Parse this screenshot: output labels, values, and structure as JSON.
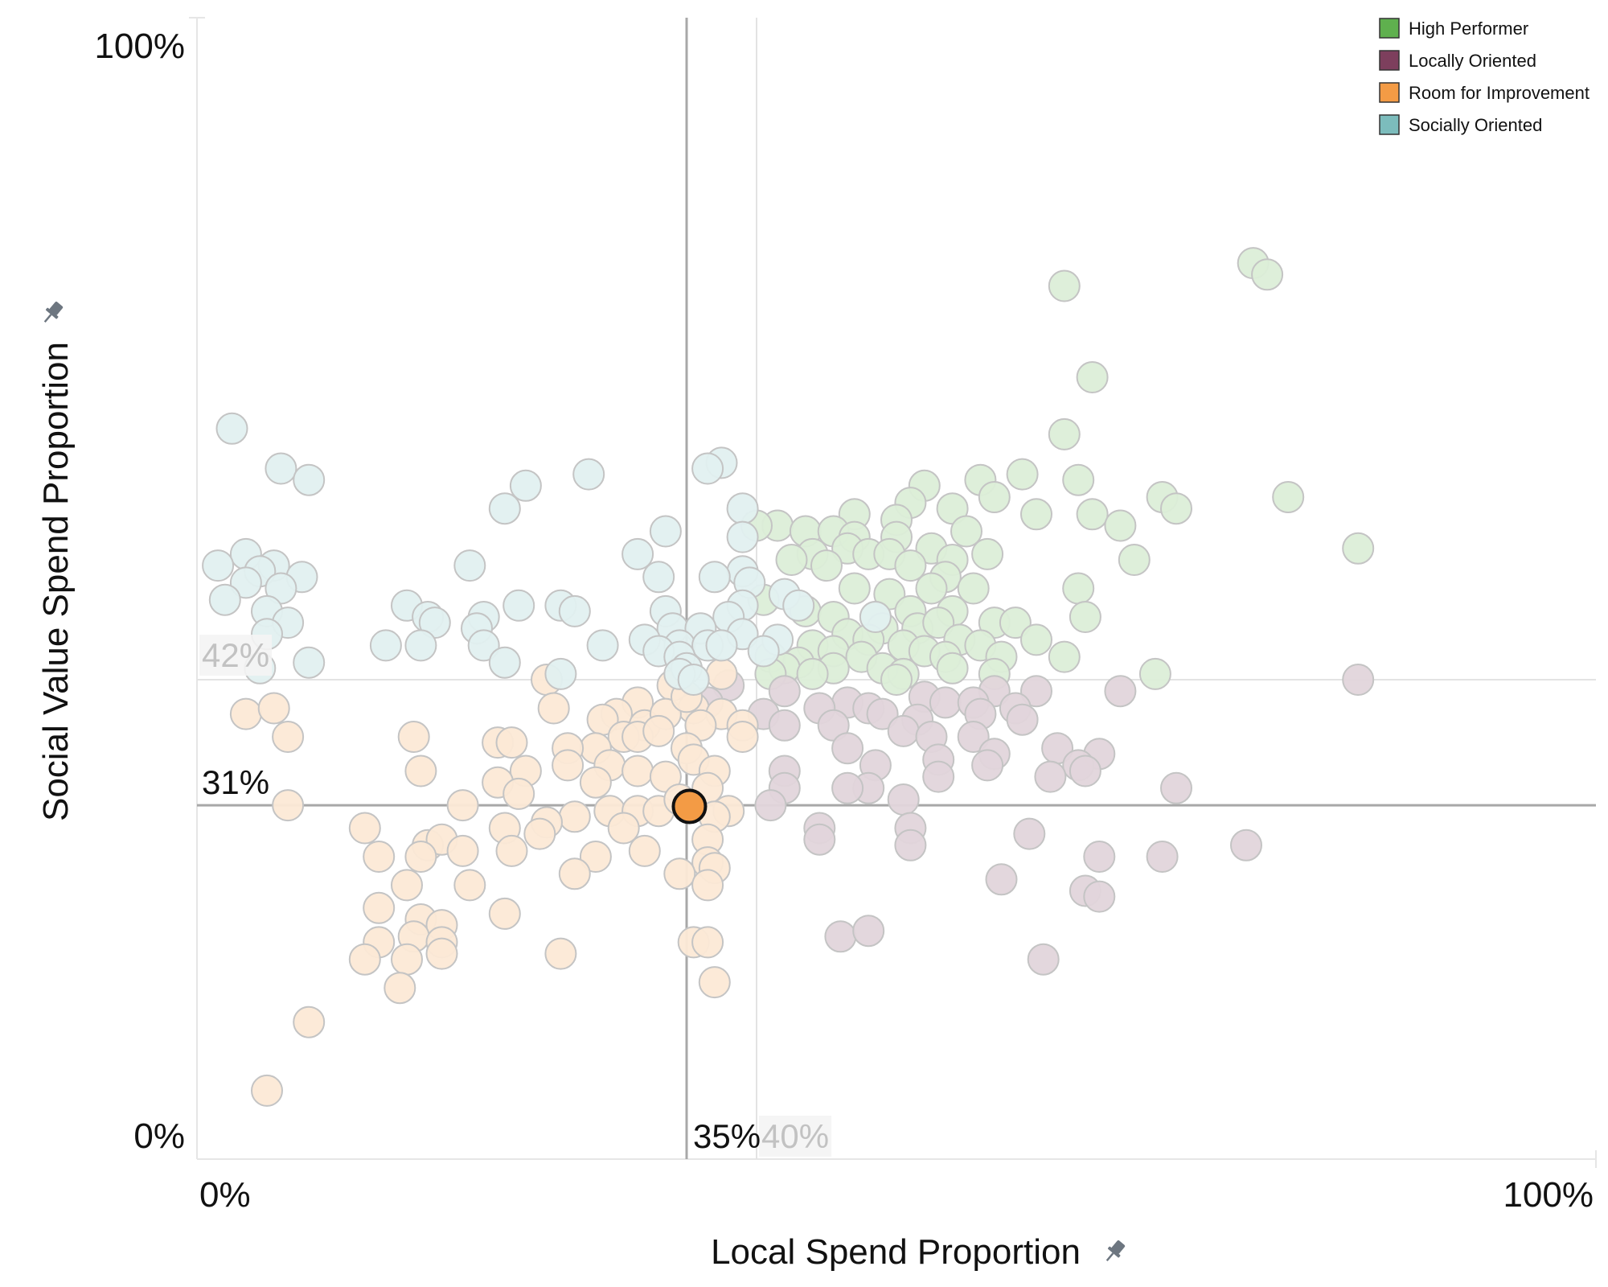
{
  "chart_data": {
    "type": "scatter",
    "xlabel": "Local Spend Proportion",
    "ylabel": "Social Value Spend Proportion",
    "x_ticks": [
      "0%",
      "100%"
    ],
    "y_ticks": [
      "0%",
      "100%"
    ],
    "xlim": [
      0,
      100
    ],
    "ylim": [
      0,
      100
    ],
    "grid": false,
    "legend_position": "top-right",
    "reference_lines": {
      "x_primary": {
        "value": 35,
        "label": "35%"
      },
      "x_secondary": {
        "value": 40,
        "label": "40%"
      },
      "y_primary": {
        "value": 31,
        "label": "31%"
      },
      "y_secondary": {
        "value": 42,
        "label": "42%"
      }
    },
    "highlighted_point": {
      "x": 35.2,
      "y": 30.9,
      "series": "Room for Improvement"
    },
    "series": [
      {
        "name": "High Performer",
        "color": "#5fb04e",
        "points": [
          [
            62,
            76.5
          ],
          [
            75.5,
            78.5
          ],
          [
            76.5,
            77.5
          ],
          [
            64,
            68.5
          ],
          [
            62,
            63.5
          ],
          [
            59,
            60
          ],
          [
            63,
            59.5
          ],
          [
            78,
            58
          ],
          [
            69,
            58
          ],
          [
            70,
            57
          ],
          [
            56,
            59.5
          ],
          [
            64,
            56.5
          ],
          [
            66,
            55.5
          ],
          [
            60,
            56.5
          ],
          [
            67,
            52.5
          ],
          [
            83,
            53.5
          ],
          [
            52,
            59
          ],
          [
            57,
            58
          ],
          [
            51,
            57.5
          ],
          [
            54,
            57
          ],
          [
            47,
            56.5
          ],
          [
            50,
            56
          ],
          [
            55,
            55
          ],
          [
            41.5,
            55.5
          ],
          [
            40,
            55.5
          ],
          [
            43.5,
            55
          ],
          [
            45.5,
            55
          ],
          [
            47,
            54.5
          ],
          [
            50,
            54.5
          ],
          [
            52.5,
            53.5
          ],
          [
            44,
            53
          ],
          [
            46.5,
            53.5
          ],
          [
            48,
            53
          ],
          [
            54,
            52.5
          ],
          [
            56.5,
            53
          ],
          [
            42.5,
            52.5
          ],
          [
            45,
            52
          ],
          [
            49.5,
            53
          ],
          [
            51,
            52
          ],
          [
            53.5,
            51
          ],
          [
            40.5,
            49
          ],
          [
            47,
            50
          ],
          [
            49.5,
            49.5
          ],
          [
            52.5,
            50
          ],
          [
            55.5,
            50
          ],
          [
            63,
            50
          ],
          [
            43.5,
            48
          ],
          [
            48.5,
            47.5
          ],
          [
            51,
            48
          ],
          [
            54,
            48
          ],
          [
            57,
            47
          ],
          [
            63.5,
            47.5
          ],
          [
            45.5,
            47.5
          ],
          [
            46.5,
            46
          ],
          [
            49,
            46.5
          ],
          [
            51.5,
            46.5
          ],
          [
            53,
            47
          ],
          [
            58.5,
            47
          ],
          [
            48,
            45.5
          ],
          [
            50.5,
            45
          ],
          [
            52,
            44.5
          ],
          [
            54.5,
            45.5
          ],
          [
            56,
            45
          ],
          [
            60,
            45.5
          ],
          [
            44,
            45
          ],
          [
            45.5,
            44.5
          ],
          [
            47.5,
            44
          ],
          [
            53.5,
            44
          ],
          [
            57.5,
            44
          ],
          [
            62,
            44
          ],
          [
            41,
            44
          ],
          [
            43,
            43.5
          ],
          [
            45.5,
            43
          ],
          [
            49,
            43
          ],
          [
            50.5,
            42.5
          ],
          [
            54,
            43
          ],
          [
            57,
            42.5
          ],
          [
            68.5,
            42.5
          ],
          [
            42,
            43
          ],
          [
            44,
            42.5
          ],
          [
            50,
            42
          ],
          [
            41,
            42.5
          ]
        ]
      },
      {
        "name": "Locally Oriented",
        "color": "#7d3f5d",
        "points": [
          [
            83,
            42
          ],
          [
            38,
            41.5
          ],
          [
            42,
            41
          ],
          [
            52,
            40.5
          ],
          [
            57,
            41
          ],
          [
            60,
            41
          ],
          [
            46.5,
            40
          ],
          [
            48,
            39.5
          ],
          [
            53.5,
            40
          ],
          [
            55.5,
            40
          ],
          [
            58.5,
            39.5
          ],
          [
            36.5,
            40
          ],
          [
            40.5,
            39
          ],
          [
            44.5,
            39.5
          ],
          [
            49,
            39
          ],
          [
            51.5,
            38.5
          ],
          [
            56,
            39
          ],
          [
            59,
            38.5
          ],
          [
            66,
            41
          ],
          [
            42,
            38
          ],
          [
            45.5,
            38
          ],
          [
            50.5,
            37.5
          ],
          [
            52.5,
            37
          ],
          [
            55.5,
            37
          ],
          [
            46.5,
            36
          ],
          [
            53,
            35
          ],
          [
            61.5,
            36
          ],
          [
            64.5,
            35.5
          ],
          [
            63,
            34.5
          ],
          [
            57,
            35.5
          ],
          [
            42,
            34
          ],
          [
            48.5,
            34.5
          ],
          [
            53,
            33.5
          ],
          [
            56.5,
            34.5
          ],
          [
            61,
            33.5
          ],
          [
            63.5,
            34
          ],
          [
            42,
            32.5
          ],
          [
            48,
            32.5
          ],
          [
            50.5,
            31.5
          ],
          [
            41,
            31
          ],
          [
            46.5,
            32.5
          ],
          [
            70,
            32.5
          ],
          [
            44.5,
            29
          ],
          [
            51,
            29
          ],
          [
            59.5,
            28.5
          ],
          [
            44.5,
            28
          ],
          [
            51,
            27.5
          ],
          [
            64.5,
            26.5
          ],
          [
            69,
            26.5
          ],
          [
            75,
            27.5
          ],
          [
            57.5,
            24.5
          ],
          [
            63.5,
            23.5
          ],
          [
            64.5,
            23
          ],
          [
            46,
            19.5
          ],
          [
            48,
            20
          ],
          [
            60.5,
            17.5
          ]
        ]
      },
      {
        "name": "Room for Improvement",
        "color": "#f39b45",
        "points": [
          [
            25,
            42
          ],
          [
            37.5,
            42.5
          ],
          [
            34,
            41.5
          ],
          [
            25.5,
            39.5
          ],
          [
            31.5,
            40
          ],
          [
            30,
            39
          ],
          [
            35.5,
            39.5
          ],
          [
            37.5,
            39
          ],
          [
            3.5,
            39
          ],
          [
            5.5,
            39.5
          ],
          [
            29,
            38.5
          ],
          [
            32,
            38
          ],
          [
            33.5,
            39
          ],
          [
            35,
            40.5
          ],
          [
            36,
            38
          ],
          [
            30.5,
            37
          ],
          [
            39,
            38
          ],
          [
            28.5,
            36
          ],
          [
            31.5,
            37
          ],
          [
            33,
            37.5
          ],
          [
            39,
            37
          ],
          [
            6.5,
            37
          ],
          [
            15.5,
            37
          ],
          [
            21.5,
            36.5
          ],
          [
            22.5,
            36.5
          ],
          [
            26.5,
            36
          ],
          [
            35,
            36
          ],
          [
            26.5,
            34.5
          ],
          [
            29.5,
            34.5
          ],
          [
            31.5,
            34
          ],
          [
            16,
            34
          ],
          [
            23.5,
            34
          ],
          [
            21.5,
            33
          ],
          [
            28.5,
            33
          ],
          [
            35.5,
            35
          ],
          [
            33.5,
            33.5
          ],
          [
            37,
            34
          ],
          [
            23,
            32
          ],
          [
            36.5,
            32.5
          ],
          [
            6.5,
            31
          ],
          [
            19,
            31
          ],
          [
            29.5,
            30.5
          ],
          [
            31.5,
            30.5
          ],
          [
            33,
            30.5
          ],
          [
            38,
            30.5
          ],
          [
            27,
            30
          ],
          [
            34.5,
            31.5
          ],
          [
            12,
            29
          ],
          [
            25,
            29.5
          ],
          [
            22,
            29
          ],
          [
            30.5,
            29
          ],
          [
            37,
            30
          ],
          [
            36.5,
            28
          ],
          [
            24.5,
            28.5
          ],
          [
            16.5,
            27.5
          ],
          [
            17.5,
            28
          ],
          [
            19,
            27
          ],
          [
            22.5,
            27
          ],
          [
            13,
            26.5
          ],
          [
            16,
            26.5
          ],
          [
            28.5,
            26.5
          ],
          [
            32,
            27
          ],
          [
            36.5,
            26
          ],
          [
            34.5,
            25
          ],
          [
            37,
            25.5
          ],
          [
            15,
            24
          ],
          [
            19.5,
            24
          ],
          [
            27,
            25
          ],
          [
            36.5,
            24
          ],
          [
            13,
            22
          ],
          [
            16,
            21
          ],
          [
            17.5,
            20.5
          ],
          [
            22,
            21.5
          ],
          [
            13,
            19
          ],
          [
            15.5,
            19.5
          ],
          [
            17.5,
            19
          ],
          [
            12,
            17.5
          ],
          [
            15,
            17.5
          ],
          [
            17.5,
            18
          ],
          [
            26,
            18
          ],
          [
            35.5,
            19
          ],
          [
            36.5,
            19
          ],
          [
            14.5,
            15
          ],
          [
            8,
            12
          ],
          [
            5,
            6
          ],
          [
            37,
            15.5
          ]
        ]
      },
      {
        "name": "Socially Oriented",
        "color": "#7cbcbc",
        "points": [
          [
            2.5,
            64
          ],
          [
            6,
            60.5
          ],
          [
            8,
            59.5
          ],
          [
            28,
            60
          ],
          [
            23.5,
            59
          ],
          [
            37.5,
            61
          ],
          [
            36.5,
            60.5
          ],
          [
            39,
            57
          ],
          [
            22,
            57
          ],
          [
            39,
            54.5
          ],
          [
            33.5,
            55
          ],
          [
            3.5,
            53
          ],
          [
            5.5,
            52
          ],
          [
            1.5,
            52
          ],
          [
            4.5,
            51.5
          ],
          [
            7.5,
            51
          ],
          [
            6,
            50
          ],
          [
            3.5,
            50.5
          ],
          [
            19.5,
            52
          ],
          [
            39,
            51.5
          ],
          [
            31.5,
            53
          ],
          [
            42,
            49.5
          ],
          [
            2,
            49
          ],
          [
            5,
            48
          ],
          [
            15,
            48.5
          ],
          [
            23,
            48.5
          ],
          [
            26,
            48.5
          ],
          [
            33,
            51
          ],
          [
            37,
            51
          ],
          [
            39.5,
            50.5
          ],
          [
            39,
            48.5
          ],
          [
            27,
            48
          ],
          [
            33.5,
            48
          ],
          [
            38,
            47.5
          ],
          [
            48.5,
            47.5
          ],
          [
            43,
            48.5
          ],
          [
            6.5,
            47
          ],
          [
            5,
            46
          ],
          [
            16.5,
            47.5
          ],
          [
            17,
            47
          ],
          [
            20.5,
            47.5
          ],
          [
            20,
            46.5
          ],
          [
            34,
            46.5
          ],
          [
            36,
            46.5
          ],
          [
            34.5,
            45
          ],
          [
            39,
            46
          ],
          [
            32,
            45.5
          ],
          [
            36.5,
            45
          ],
          [
            41.5,
            45.5
          ],
          [
            40.5,
            44.5
          ],
          [
            13.5,
            45
          ],
          [
            16,
            45
          ],
          [
            20.5,
            45
          ],
          [
            29,
            45
          ],
          [
            33,
            44.5
          ],
          [
            34.5,
            44
          ],
          [
            35,
            43
          ],
          [
            37.5,
            45
          ],
          [
            8,
            43.5
          ],
          [
            4.5,
            43
          ],
          [
            22,
            43.5
          ],
          [
            26,
            42.5
          ],
          [
            34.5,
            42.5
          ],
          [
            35.5,
            42
          ]
        ]
      }
    ]
  }
}
